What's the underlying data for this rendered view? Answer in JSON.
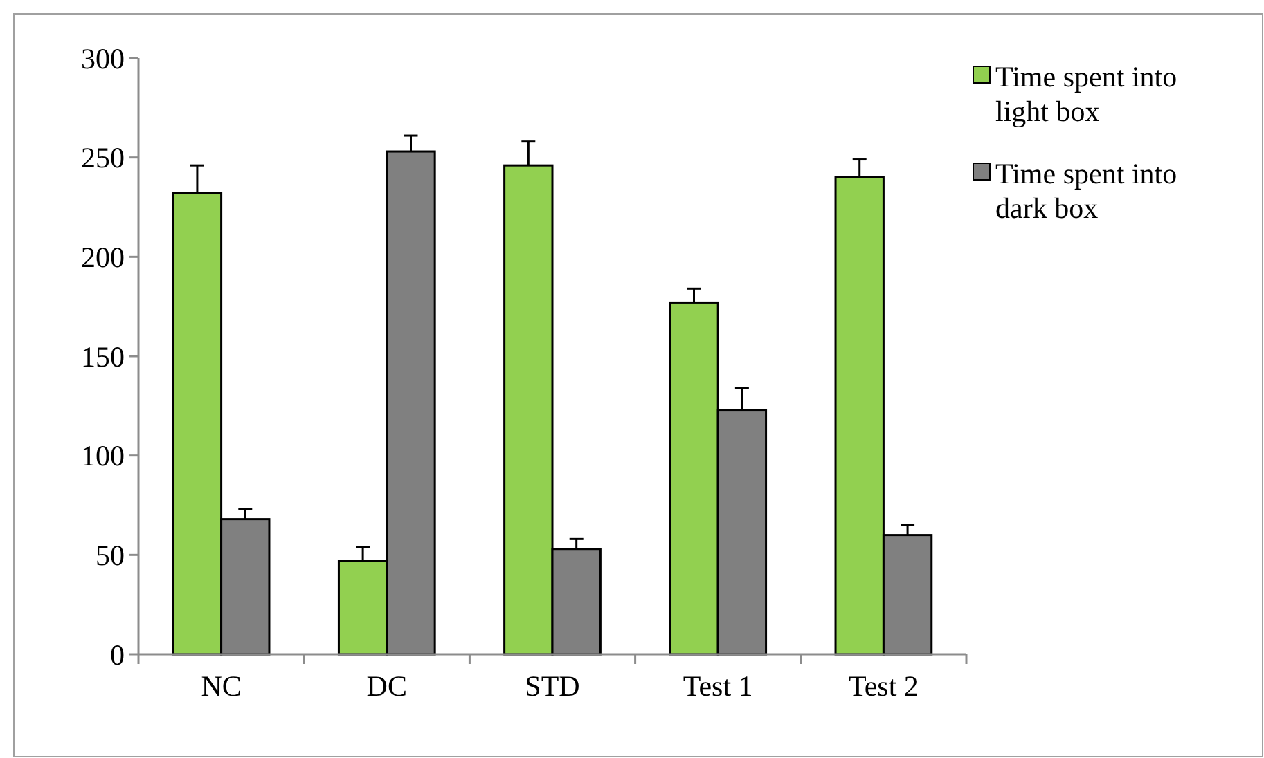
{
  "chart_data": {
    "type": "bar",
    "categories": [
      "NC",
      "DC",
      "STD",
      "Test 1",
      "Test 2"
    ],
    "series": [
      {
        "name": "Time spent into light box",
        "color": "#92d050",
        "values": [
          232,
          47,
          246,
          177,
          240
        ],
        "errors": [
          [
            232,
            246
          ],
          [
            47,
            54
          ],
          [
            246,
            258
          ],
          [
            177,
            184
          ],
          [
            240,
            249
          ]
        ]
      },
      {
        "name": "Time spent into dark box",
        "color": "#808080",
        "values": [
          68,
          253,
          53,
          123,
          60
        ],
        "errors": [
          [
            68,
            73
          ],
          [
            253,
            261
          ],
          [
            53,
            58
          ],
          [
            123,
            134
          ],
          [
            60,
            65
          ]
        ]
      }
    ],
    "ylim": [
      0,
      300
    ],
    "yticks": [
      0,
      50,
      100,
      150,
      200,
      250,
      300
    ],
    "grid": false,
    "legend": "top right"
  }
}
